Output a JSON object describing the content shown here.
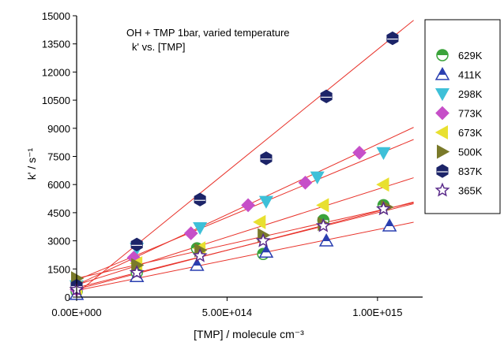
{
  "chart_data": {
    "type": "scatter",
    "annotation": [
      "OH + TMP  1bar, varied temperature",
      "k' vs. [TMP]"
    ],
    "ylabel": "k'   /   s⁻¹",
    "xlabel": "[TMP]   /   molecule cm⁻³",
    "xlim": [
      0,
      1150000000000000.0
    ],
    "ylim": [
      0,
      15000
    ],
    "x_ticks": [
      {
        "value": 0,
        "label": "0.00E+000"
      },
      {
        "value": 500000000000000.0,
        "label": "5.00E+014"
      },
      {
        "value": 1000000000000000.0,
        "label": "1.00E+015"
      }
    ],
    "y_ticks": [
      {
        "value": 0,
        "label": "0"
      },
      {
        "value": 1500,
        "label": "1500"
      },
      {
        "value": 3000,
        "label": "3000"
      },
      {
        "value": 4500,
        "label": "4500"
      },
      {
        "value": 6000,
        "label": "6000"
      },
      {
        "value": 7500,
        "label": "7500"
      },
      {
        "value": 9000,
        "label": "9000"
      },
      {
        "value": 10500,
        "label": "10500"
      },
      {
        "value": 12000,
        "label": "12000"
      },
      {
        "value": 13500,
        "label": "13500"
      },
      {
        "value": 15000,
        "label": "15000"
      }
    ],
    "fit_color": "#e8322a",
    "legend_position": "right",
    "series": [
      {
        "name": "629K",
        "marker": "half-circle",
        "color": "#3aa33a",
        "x": [
          0,
          200000000000000.0,
          400000000000000.0,
          620000000000000.0,
          820000000000000.0,
          1020000000000000.0
        ],
        "y": [
          300,
          1300,
          2600,
          2300,
          4100,
          4900
        ],
        "fit": {
          "intercept": 420,
          "slope": 4.15e-12
        }
      },
      {
        "name": "411K",
        "marker": "triangle-up",
        "color": "#2a3fb0",
        "x": [
          0,
          200000000000000.0,
          400000000000000.0,
          630000000000000.0,
          830000000000000.0,
          1040000000000000.0
        ],
        "y": [
          150,
          1100,
          1700,
          2400,
          3000,
          3800
        ],
        "fit": {
          "intercept": 350,
          "slope": 3.25e-12
        }
      },
      {
        "name": "298K",
        "marker": "triangle-down",
        "color": "#3ec0d8",
        "x": [
          0,
          200000000000000.0,
          410000000000000.0,
          630000000000000.0,
          800000000000000.0,
          1020000000000000.0
        ],
        "y": [
          600,
          2600,
          3700,
          5100,
          6400,
          7700
        ],
        "fit": {
          "intercept": 900,
          "slope": 6.7e-12
        }
      },
      {
        "name": "773K",
        "marker": "diamond",
        "color": "#c64fc8",
        "x": [
          0,
          190000000000000.0,
          380000000000000.0,
          570000000000000.0,
          760000000000000.0,
          940000000000000.0
        ],
        "y": [
          400,
          2100,
          3400,
          4900,
          6100,
          7700
        ],
        "fit": {
          "intercept": 650,
          "slope": 7.5e-12
        }
      },
      {
        "name": "673K",
        "marker": "triangle-left",
        "color": "#e8e030",
        "x": [
          0,
          200000000000000.0,
          410000000000000.0,
          610000000000000.0,
          820000000000000.0,
          1020000000000000.0
        ],
        "y": [
          500,
          1800,
          2600,
          4000,
          4900,
          6000
        ],
        "fit": {
          "intercept": 650,
          "slope": 5.1e-12
        }
      },
      {
        "name": "500K",
        "marker": "triangle-right",
        "color": "#7a7a2a",
        "x": [
          0,
          200000000000000.0,
          410000000000000.0,
          620000000000000.0,
          820000000000000.0,
          1030000000000000.0
        ],
        "y": [
          1000,
          1700,
          2500,
          3300,
          3900,
          4800
        ],
        "fit": {
          "intercept": 1000,
          "slope": 3.6e-12
        }
      },
      {
        "name": "837K",
        "marker": "hexagon",
        "color": "#1c2468",
        "x": [
          0,
          200000000000000.0,
          410000000000000.0,
          630000000000000.0,
          830000000000000.0,
          1050000000000000.0
        ],
        "y": [
          600,
          2800,
          5200,
          7400,
          10700,
          13800
        ],
        "fit": {
          "intercept": 200,
          "slope": 1.3e-11
        }
      },
      {
        "name": "365K",
        "marker": "star",
        "color": "#5a2a8a",
        "x": [
          0,
          200000000000000.0,
          410000000000000.0,
          620000000000000.0,
          820000000000000.0,
          1020000000000000.0
        ],
        "y": [
          400,
          1300,
          2200,
          3000,
          3800,
          4700
        ],
        "fit": {
          "intercept": 500,
          "slope": 4e-12
        }
      }
    ]
  }
}
